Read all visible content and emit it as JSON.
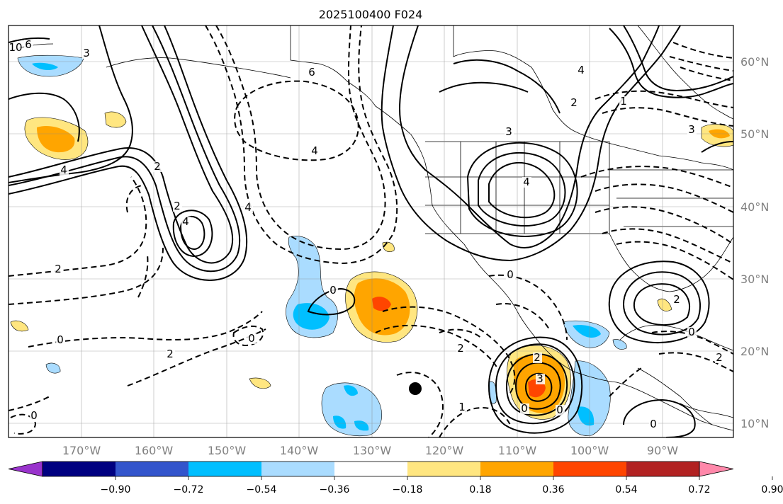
{
  "title": "2025100400 F024",
  "lat_labels": [
    "60°N",
    "50°N",
    "40°N",
    "30°N",
    "20°N",
    "10°N"
  ],
  "lon_labels": [
    "170°W",
    "160°W",
    "150°W",
    "140°W",
    "130°W",
    "120°W",
    "110°W",
    "100°W",
    "90°W"
  ],
  "colorbar": {
    "ticks": [
      "−0.90",
      "−0.72",
      "−0.54",
      "−0.36",
      "−0.18",
      "0.18",
      "0.36",
      "0.54",
      "0.72",
      "0.90"
    ],
    "colors": [
      "#9933cc",
      "#000080",
      "#3355cc",
      "#00bfff",
      "#aadcff",
      "#ffffff",
      "#ffe680",
      "#ffa500",
      "#ff4500",
      "#b22222",
      "#ff88aa"
    ]
  },
  "contour_labels": [
    {
      "text": "10"
    },
    {
      "text": "6"
    },
    {
      "text": "3"
    },
    {
      "text": "4"
    },
    {
      "text": "2"
    },
    {
      "text": "6"
    },
    {
      "text": "4"
    },
    {
      "text": "4"
    },
    {
      "text": "2"
    },
    {
      "text": "4"
    },
    {
      "text": "2"
    },
    {
      "text": "0"
    },
    {
      "text": "0"
    },
    {
      "text": "2"
    },
    {
      "text": "0"
    },
    {
      "text": "0"
    },
    {
      "text": "0"
    },
    {
      "text": "2"
    },
    {
      "text": "3"
    },
    {
      "text": "4"
    },
    {
      "text": "2"
    },
    {
      "text": "1"
    },
    {
      "text": "4"
    },
    {
      "text": "4"
    },
    {
      "text": "2"
    },
    {
      "text": "0"
    },
    {
      "text": "2"
    },
    {
      "text": "0"
    },
    {
      "text": "1"
    },
    {
      "text": "3"
    },
    {
      "text": "0"
    },
    {
      "text": "2"
    },
    {
      "text": "3"
    },
    {
      "text": "0"
    }
  ]
}
